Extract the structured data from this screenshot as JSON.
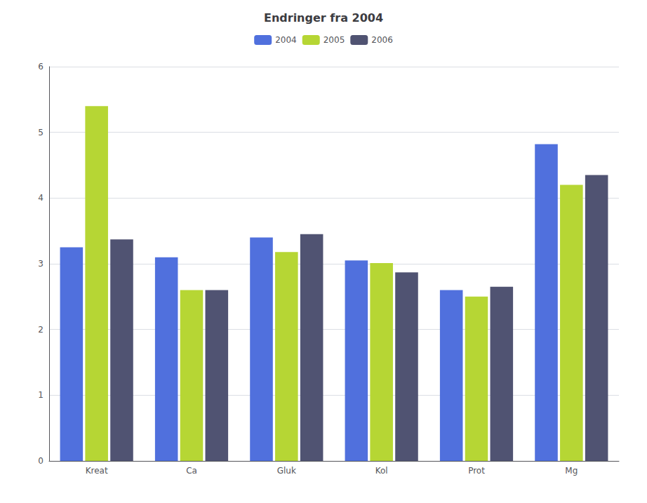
{
  "chart_data": {
    "type": "bar",
    "title": "Endringer fra 2004",
    "categories": [
      "Kreat",
      "Ca",
      "Gluk",
      "Kol",
      "Prot",
      "Mg"
    ],
    "series": [
      {
        "name": "2004",
        "values": [
          3.25,
          3.1,
          3.4,
          3.05,
          2.6,
          4.82
        ]
      },
      {
        "name": "2005",
        "values": [
          5.4,
          2.6,
          3.18,
          3.01,
          2.5,
          4.2
        ]
      },
      {
        "name": "2006",
        "values": [
          3.37,
          2.6,
          3.45,
          2.87,
          2.65,
          4.35
        ]
      }
    ],
    "ylim": [
      0,
      6
    ],
    "yticks": [
      0,
      1,
      2,
      3,
      4,
      5,
      6
    ],
    "grid": true,
    "legend": "top"
  }
}
